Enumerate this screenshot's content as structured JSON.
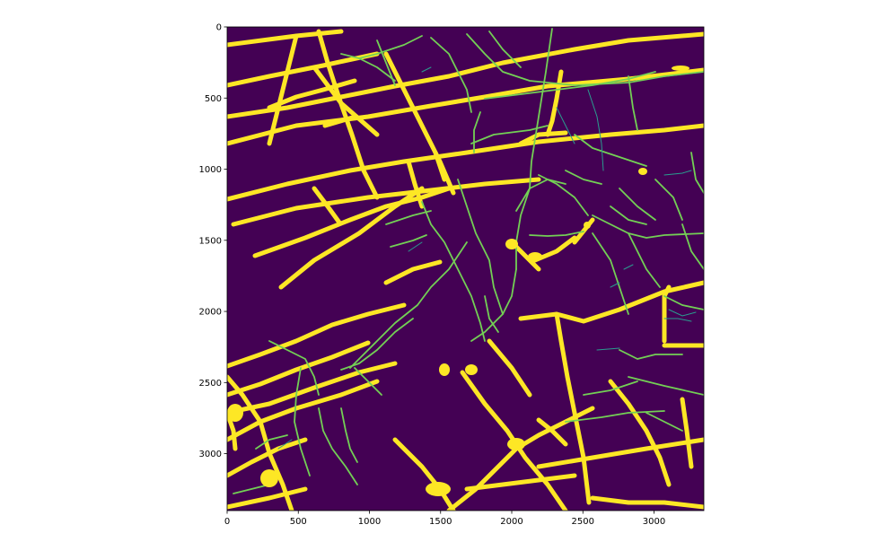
{
  "chart_data": {
    "type": "heatmap",
    "title": "",
    "xlabel": "",
    "ylabel": "",
    "xlim": [
      0,
      3350
    ],
    "ylim": [
      3400,
      0
    ],
    "y_axis_inverted": true,
    "x_ticks": [
      0,
      500,
      1000,
      1500,
      2000,
      2500,
      3000
    ],
    "y_ticks": [
      0,
      500,
      1000,
      1500,
      2000,
      2500,
      3000
    ],
    "colormap": "viridis",
    "colors": {
      "background": "#440154",
      "major_road": "#fde725",
      "minor_road": "#73d055",
      "path": "#35b779",
      "trail": "#2a9d8f"
    },
    "grid": false,
    "legend": "none"
  }
}
